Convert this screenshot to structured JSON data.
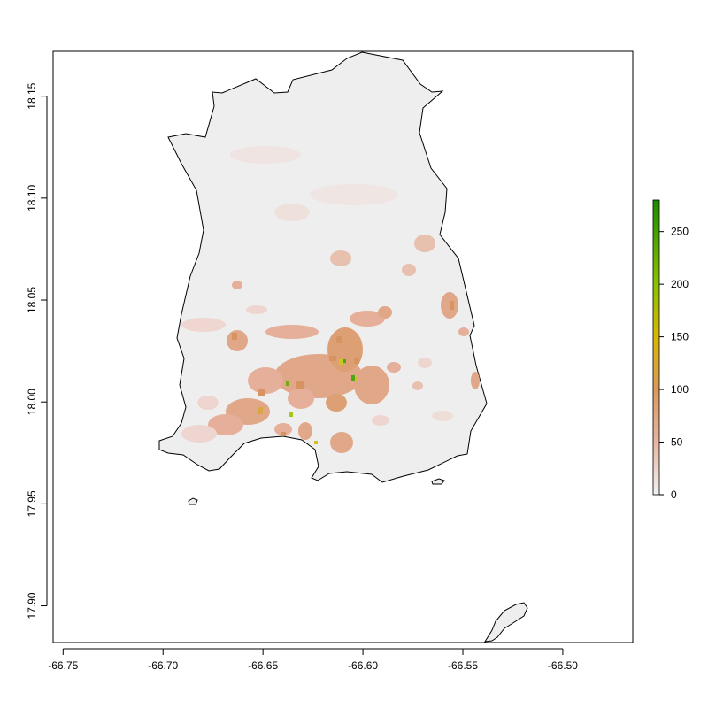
{
  "map": {
    "x_axis": {
      "ticks": [
        {
          "value": -66.75,
          "label": "-66.75"
        },
        {
          "value": -66.7,
          "label": "-66.70"
        },
        {
          "value": -66.65,
          "label": "-66.65"
        },
        {
          "value": -66.6,
          "label": "-66.60"
        },
        {
          "value": -66.55,
          "label": "-66.55"
        },
        {
          "value": -66.5,
          "label": "-66.50"
        }
      ],
      "range": [
        -66.755,
        -66.465
      ]
    },
    "y_axis": {
      "ticks": [
        {
          "value": 17.9,
          "label": "17.90"
        },
        {
          "value": 17.95,
          "label": "17.95"
        },
        {
          "value": 18.0,
          "label": "18.00"
        },
        {
          "value": 18.05,
          "label": "18.05"
        },
        {
          "value": 18.1,
          "label": "18.10"
        },
        {
          "value": 18.15,
          "label": "18.15"
        }
      ],
      "range": [
        17.882,
        18.172
      ]
    },
    "legend": {
      "placement": "right",
      "min": 0,
      "max": 280,
      "ticks": [
        {
          "value": 0,
          "label": "0"
        },
        {
          "value": 50,
          "label": "50"
        },
        {
          "value": 100,
          "label": "100"
        },
        {
          "value": 150,
          "label": "150"
        },
        {
          "value": 200,
          "label": "200"
        },
        {
          "value": 250,
          "label": "250"
        }
      ],
      "colors": [
        "#f2f2f2",
        "#e8b4a0",
        "#d99a5a",
        "#d8b800",
        "#88c000",
        "#1a8c00"
      ]
    },
    "colors": {
      "land_fill": "#eeeeee",
      "outline": "#000000",
      "low": "#eed3cc",
      "medium": "#e5a990",
      "high": "#d68a55",
      "peak_yellow": "#c8c400",
      "peak_green": "#3aa000"
    }
  }
}
